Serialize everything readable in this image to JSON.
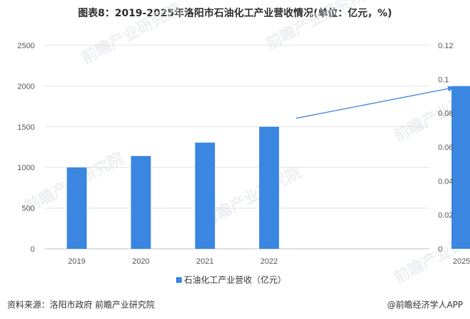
{
  "title": "图表8：2019-2025年洛阳市石油化工产业营收情况(单位：亿元，%)",
  "footer": {
    "source": "资料来源：洛阳市政府 前瞻产业研究院",
    "brand": "@前瞻经济学人APP"
  },
  "watermark": "前瞻产业研究院",
  "chart_data": {
    "type": "bar",
    "categories": [
      "2019",
      "2020",
      "2021",
      "2022",
      "2025"
    ],
    "series": [
      {
        "name": "石油化工产业营收（亿元）",
        "values": [
          1000,
          1140,
          1305,
          1500,
          2000
        ],
        "color": "#3a86e0"
      }
    ],
    "ylim": [
      0,
      2500
    ],
    "yticks": [
      "0",
      "500",
      "1000",
      "1500",
      "2000",
      "2500"
    ],
    "y2lim": [
      0,
      0.12
    ],
    "y2ticks": [
      "0",
      "0.02",
      "0.04",
      "0.06",
      "0.08",
      "0.1",
      "0.12"
    ],
    "grid": true,
    "legend": "bottom-center",
    "arrow_color": "#3a86e0"
  }
}
